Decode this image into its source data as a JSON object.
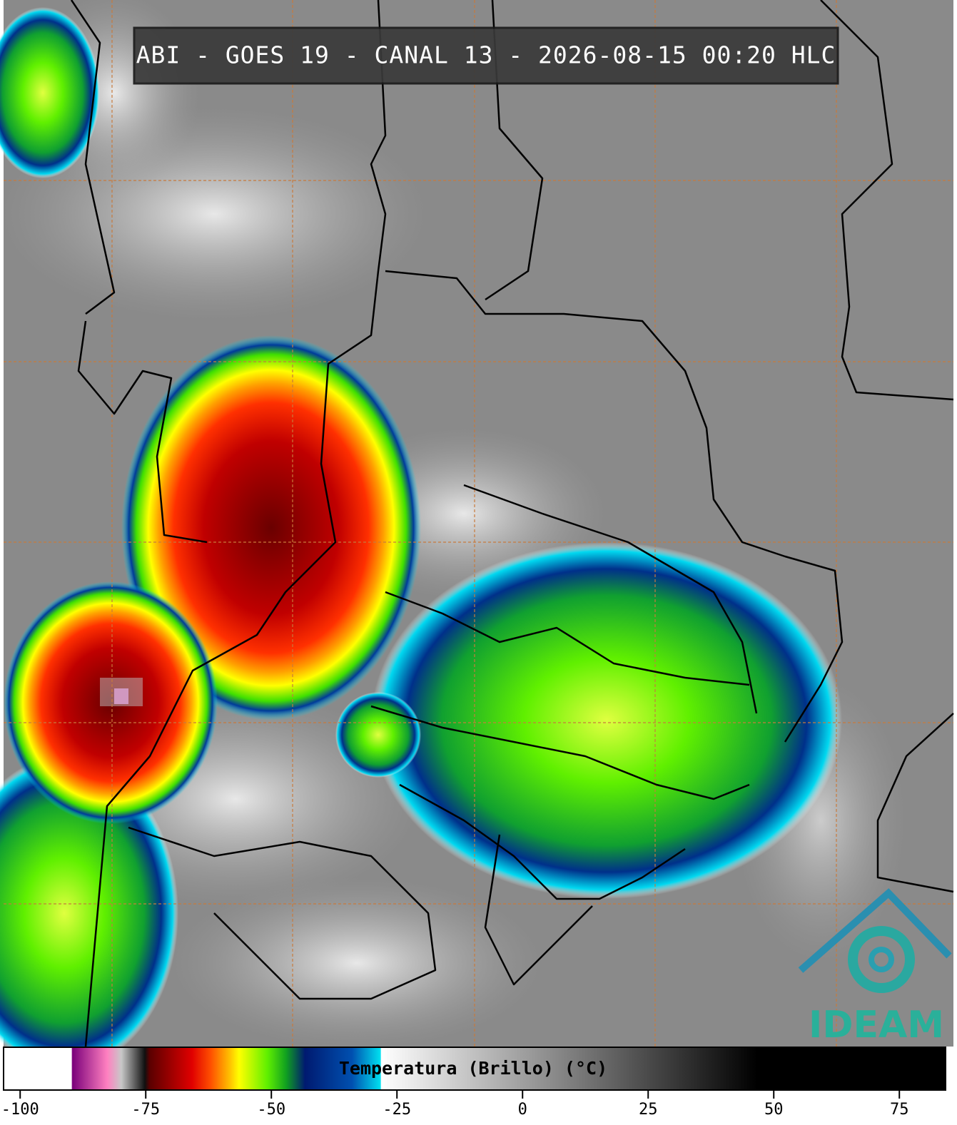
{
  "header": {
    "title": "ABI - GOES 19 - CANAL 13 - 2026-08-15 00:20 HLC"
  },
  "colorbar": {
    "label": "Temperatura (Brillo) (°C)",
    "xlim": [
      -103.3,
      84.2
    ],
    "xticks": [
      -100,
      -75,
      -50,
      -25,
      0,
      25,
      50,
      75
    ]
  },
  "logo": {
    "text": "IDEAM"
  }
}
